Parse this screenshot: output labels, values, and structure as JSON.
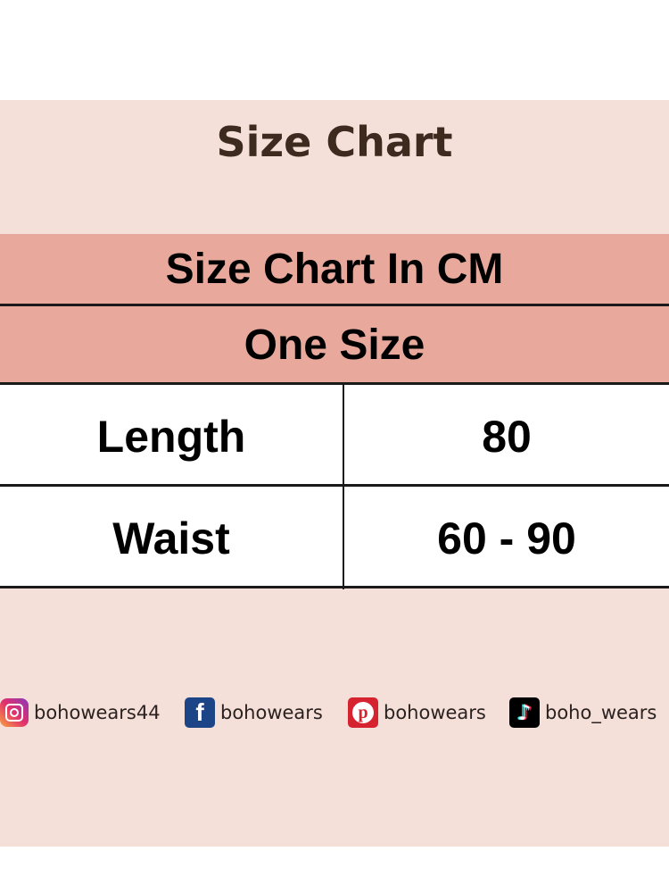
{
  "title": "Size Chart",
  "table": {
    "header": "Size Chart In CM",
    "subheader": "One Size",
    "rows": [
      {
        "label": "Length",
        "value": "80"
      },
      {
        "label": "Waist",
        "value": "60 - 90"
      }
    ]
  },
  "social": [
    {
      "icon": "instagram-icon",
      "handle": "bohowears44"
    },
    {
      "icon": "facebook-icon",
      "handle": "bohowears"
    },
    {
      "icon": "pinterest-icon",
      "handle": "bohowears"
    },
    {
      "icon": "tiktok-icon",
      "handle": "boho_wears"
    }
  ],
  "colors": {
    "background": "#f5dfd9",
    "header": "#e8a89b",
    "title": "#3d2b20"
  }
}
